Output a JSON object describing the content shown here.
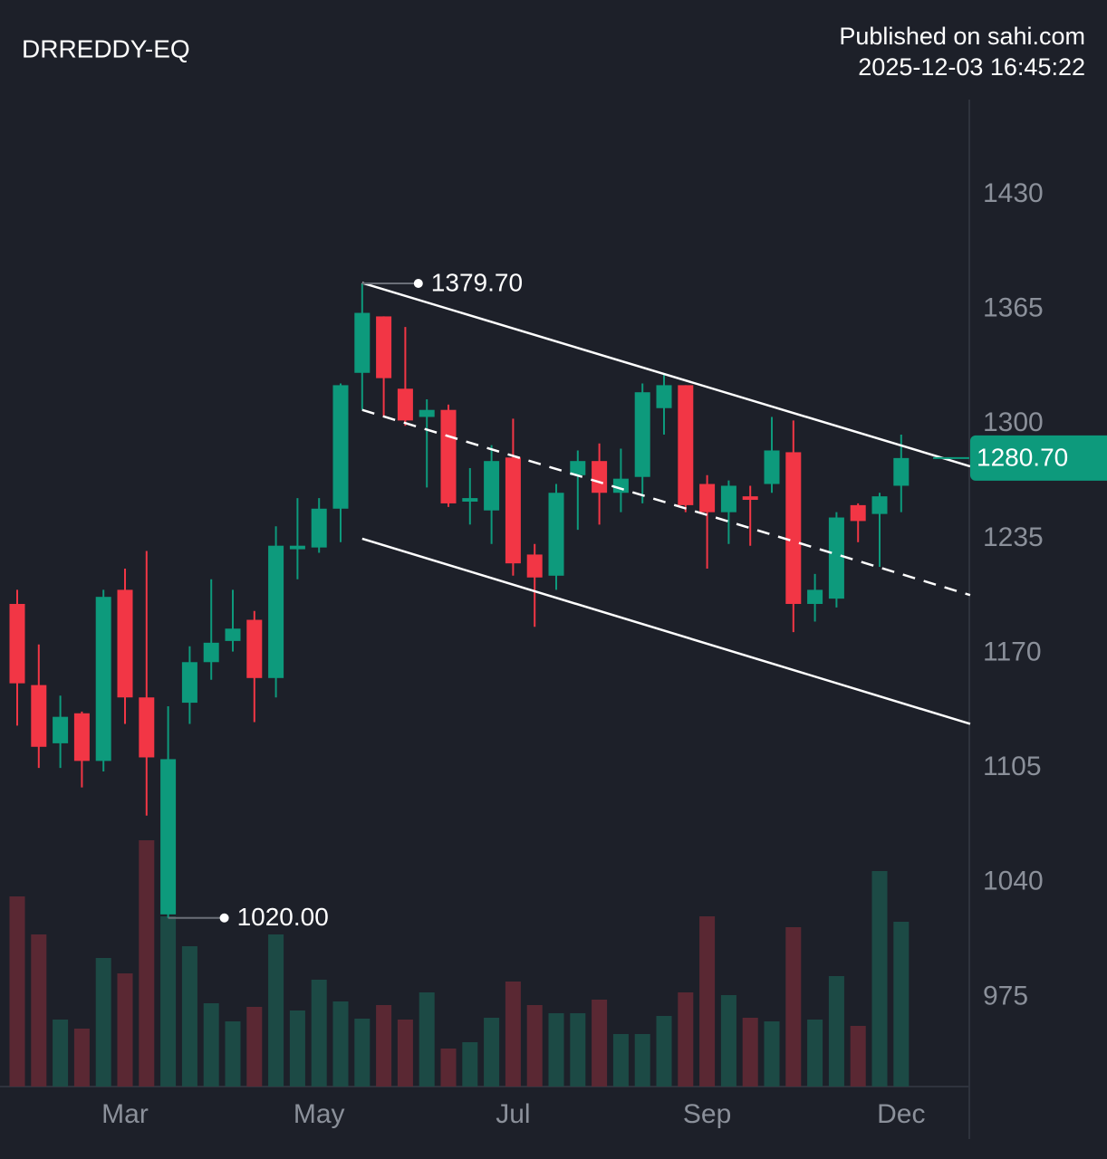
{
  "chart_data": {
    "type": "candlestick",
    "title": "DRREDDY-EQ",
    "publisher": "Published on sahi.com",
    "timestamp": "2025-12-03 16:45:22",
    "categories": [
      null,
      null,
      null,
      null,
      null,
      "Mar",
      null,
      null,
      null,
      null,
      null,
      null,
      null,
      null,
      "May",
      null,
      null,
      null,
      null,
      null,
      null,
      null,
      null,
      "Jul",
      null,
      null,
      null,
      null,
      null,
      null,
      null,
      null,
      "Sep",
      null,
      null,
      null,
      null,
      null,
      null,
      null,
      null,
      "Dec"
    ],
    "open": [
      1198,
      1152,
      1119,
      1136,
      1109,
      1206,
      1145,
      1022,
      1142,
      1165,
      1177,
      1189,
      1156,
      1229,
      1230,
      1252,
      1329,
      1361,
      1320,
      1304,
      1308,
      1256,
      1251,
      1281,
      1226,
      1214,
      1271,
      1279,
      1261,
      1270,
      1309,
      1322,
      1266,
      1250,
      1259,
      1266,
      1284,
      1198,
      1201,
      1254,
      1249,
      1265
    ],
    "high": [
      1206,
      1175,
      1146,
      1137,
      1206,
      1218,
      1228,
      1140,
      1174,
      1212,
      1206,
      1194,
      1242,
      1258,
      1258,
      1323,
      1379.7,
      1361,
      1355,
      1314,
      1311,
      1275,
      1288,
      1303,
      1232,
      1266,
      1285,
      1289,
      1286,
      1323,
      1328,
      1322,
      1271,
      1268,
      1265,
      1304,
      1302,
      1215,
      1250,
      1255,
      1261,
      1294
    ],
    "low": [
      1129,
      1105,
      1105,
      1094,
      1103,
      1130,
      1078,
      1020,
      1130,
      1155,
      1171,
      1131,
      1145,
      1212,
      1227,
      1233,
      1308,
      1304,
      1299,
      1264,
      1253,
      1243,
      1232,
      1214,
      1185,
      1206,
      1240,
      1243,
      1250,
      1255,
      1294,
      1250,
      1218,
      1232,
      1231,
      1261,
      1182,
      1188,
      1196,
      1233,
      1219,
      1250
    ],
    "close": [
      1153,
      1117,
      1134,
      1109,
      1202,
      1145,
      1111,
      1110,
      1165,
      1176,
      1184,
      1156,
      1231,
      1231,
      1252,
      1322,
      1363,
      1326,
      1302,
      1308,
      1255,
      1258,
      1279,
      1221,
      1213,
      1261,
      1279,
      1261,
      1269,
      1318,
      1322,
      1254,
      1250,
      1265,
      1257,
      1285,
      1198,
      1206,
      1247,
      1245,
      1259,
      1280.7
    ],
    "volume": [
      210,
      168,
      74,
      64,
      142,
      125,
      272,
      188,
      155,
      92,
      72,
      88,
      168,
      84,
      118,
      94,
      75,
      90,
      74,
      104,
      42,
      49,
      76,
      116,
      90,
      81,
      81,
      96,
      58,
      58,
      78,
      104,
      188,
      101,
      76,
      72,
      176,
      74,
      122,
      67,
      238,
      182
    ],
    "ylim": [
      924.4,
      1483.9
    ],
    "yticks": [
      975,
      1040,
      1105,
      1170,
      1235,
      1300,
      1365,
      1430
    ],
    "up_color": "#0d9a7c",
    "down_color": "#f23645",
    "volume_up_color": "#1c4a45",
    "volume_down_color": "#5a2833",
    "high_label": {
      "value": 1379.7,
      "label": "1379.70"
    },
    "low_label": {
      "value": 1020,
      "label": "1020.00"
    },
    "last_price": {
      "value": 1280.7,
      "label": "1280.70"
    },
    "trendlines": [
      {
        "from": [
          16,
          1380
        ],
        "to": [
          44.2,
          1276
        ],
        "style": "solid"
      },
      {
        "from": [
          16,
          1308
        ],
        "to": [
          44.2,
          1203
        ],
        "style": "dashed"
      },
      {
        "from": [
          16,
          1235
        ],
        "to": [
          44.2,
          1130
        ],
        "style": "solid"
      }
    ]
  }
}
